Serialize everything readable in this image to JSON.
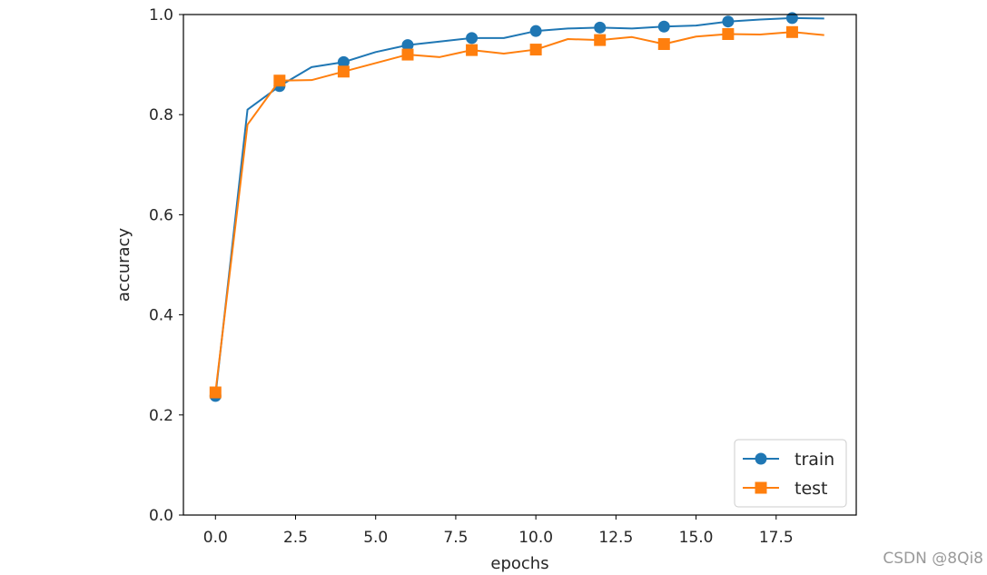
{
  "chart_data": {
    "type": "line",
    "xlabel": "epochs",
    "ylabel": "accuracy",
    "xlim": [
      -1.0,
      20.0
    ],
    "ylim": [
      0.0,
      1.0
    ],
    "x_ticks": [
      0.0,
      2.5,
      5.0,
      7.5,
      10.0,
      12.5,
      15.0,
      17.5
    ],
    "x_tick_labels": [
      "0.0",
      "2.5",
      "5.0",
      "7.5",
      "10.0",
      "12.5",
      "15.0",
      "17.5"
    ],
    "y_ticks": [
      0.0,
      0.2,
      0.4,
      0.6,
      0.8,
      1.0
    ],
    "y_tick_labels": [
      "0.0",
      "0.2",
      "0.4",
      "0.6",
      "0.8",
      "1.0"
    ],
    "grid": false,
    "legend_position": "bottom-right",
    "x": [
      0,
      1,
      2,
      3,
      4,
      5,
      6,
      7,
      8,
      9,
      10,
      11,
      12,
      13,
      14,
      15,
      16,
      17,
      18,
      19
    ],
    "series": [
      {
        "name": "train",
        "color": "#1f77b4",
        "marker": "circle",
        "markevery": 2,
        "values": [
          0.238,
          0.81,
          0.857,
          0.895,
          0.905,
          0.925,
          0.939,
          0.946,
          0.953,
          0.953,
          0.967,
          0.972,
          0.974,
          0.972,
          0.976,
          0.978,
          0.986,
          0.99,
          0.993,
          0.992
        ]
      },
      {
        "name": "test",
        "color": "#ff7f0e",
        "marker": "square",
        "markevery": 2,
        "values": [
          0.245,
          0.78,
          0.868,
          0.869,
          0.886,
          0.903,
          0.92,
          0.915,
          0.929,
          0.922,
          0.93,
          0.951,
          0.949,
          0.955,
          0.941,
          0.956,
          0.961,
          0.96,
          0.965,
          0.959
        ]
      }
    ]
  },
  "watermark": "CSDN @8Qi8"
}
